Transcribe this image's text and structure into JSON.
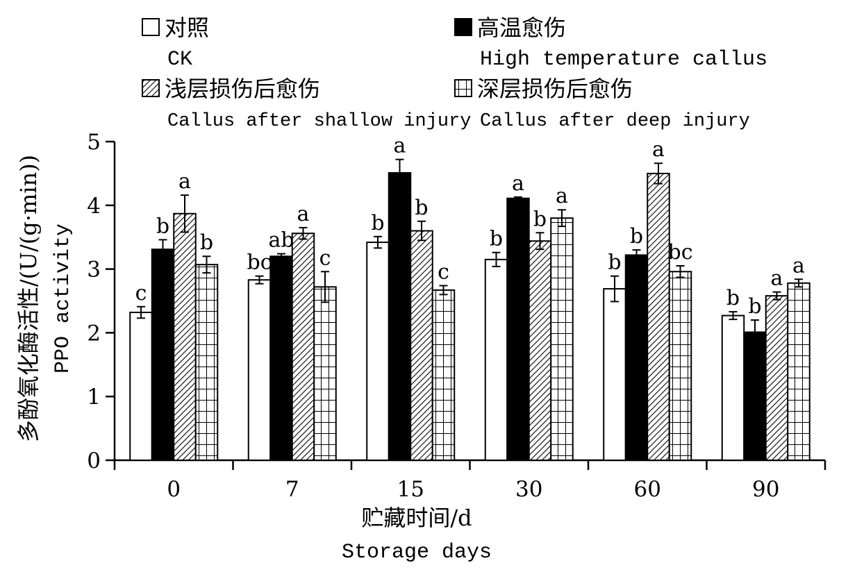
{
  "chart_data": {
    "type": "bar",
    "title": "",
    "xlabel": "贮藏时间/d",
    "xlabel_en": "Storage days",
    "ylabel": "多酚氧化酶活性/(U/(g·min))",
    "ylabel_en": "PPO activity",
    "ylim": [
      0,
      5
    ],
    "yticks": [
      "0",
      "1",
      "2",
      "3",
      "4",
      "5"
    ],
    "categories": [
      "0",
      "7",
      "15",
      "30",
      "60",
      "90"
    ],
    "legend_position": "top",
    "series": [
      {
        "name": "对照",
        "name_en": "CK",
        "pattern": "white",
        "values": [
          2.32,
          2.83,
          3.42,
          3.15,
          2.69,
          2.27
        ],
        "errors": [
          0.09,
          0.06,
          0.09,
          0.11,
          0.2,
          0.06
        ],
        "labels": [
          "c",
          "bc",
          "b",
          "b",
          "b",
          "b"
        ]
      },
      {
        "name": "高温愈伤",
        "name_en": "High temperature callus",
        "pattern": "black",
        "values": [
          3.31,
          3.2,
          4.51,
          4.11,
          3.22,
          2.01
        ],
        "errors": [
          0.15,
          0.04,
          0.21,
          0.02,
          0.08,
          0.19
        ],
        "labels": [
          "b",
          "ab",
          "a",
          "a",
          "b",
          "b"
        ]
      },
      {
        "name": "浅层损伤后愈伤",
        "name_en": "Callus after shallow injury",
        "pattern": "diagonal",
        "values": [
          3.87,
          3.56,
          3.6,
          3.44,
          4.5,
          2.58
        ],
        "errors": [
          0.29,
          0.09,
          0.15,
          0.13,
          0.16,
          0.06
        ],
        "labels": [
          "a",
          "a",
          "b",
          "b",
          "a",
          "a"
        ]
      },
      {
        "name": "深层损伤后愈伤",
        "name_en": "Callus after deep injury",
        "pattern": "grid",
        "values": [
          3.07,
          2.72,
          2.67,
          3.8,
          2.96,
          2.78
        ],
        "errors": [
          0.13,
          0.24,
          0.07,
          0.13,
          0.09,
          0.06
        ],
        "labels": [
          "b",
          "c",
          "c",
          "a",
          "bc",
          "a"
        ]
      }
    ]
  }
}
